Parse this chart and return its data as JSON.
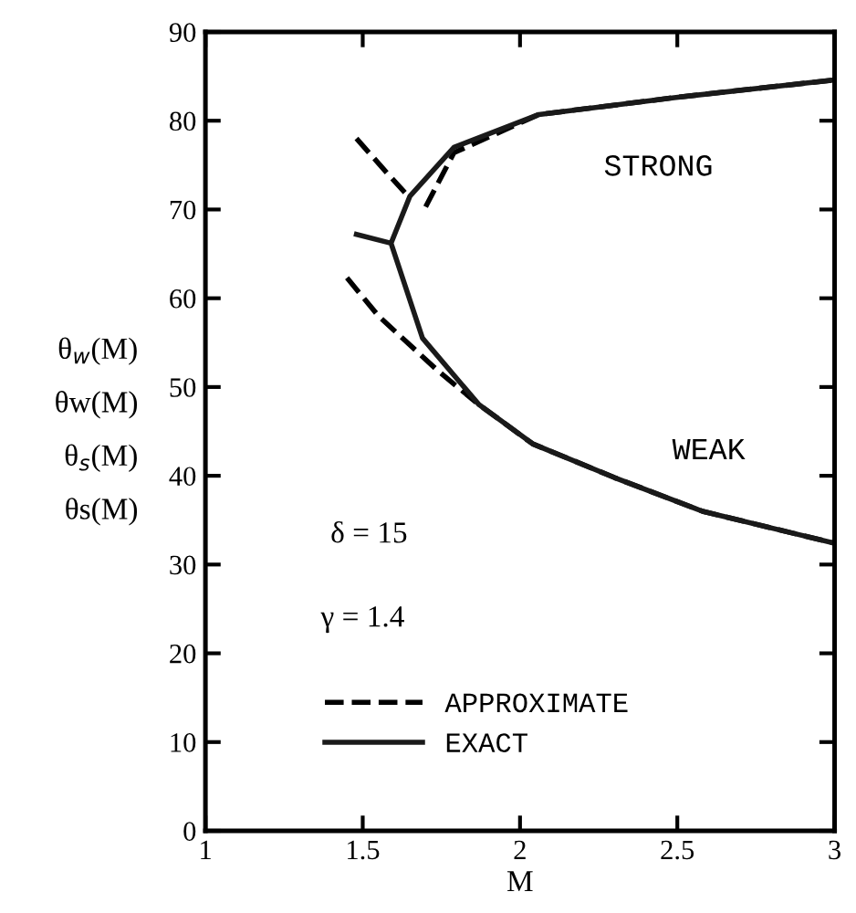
{
  "chart_data": {
    "type": "line",
    "xlabel": "M",
    "ylabel": "θ$_{w}$(M)\nθw(M)\nθ$_{s}$(M)\nθs(M)",
    "xlim": [
      1,
      3
    ],
    "xticks": [
      1,
      1.5,
      2,
      2.5,
      3
    ],
    "ylim": [
      0,
      90
    ],
    "yticks": [
      0,
      10,
      20,
      30,
      40,
      50,
      60,
      70,
      80,
      90
    ],
    "grid": false,
    "legend": "bottom left",
    "marker": "none",
    "annotations": [
      "STRONG",
      "WEAK",
      "δ = 15",
      "γ = 1.4"
    ],
    "series": [
      {
        "name": "APPROXIMATE",
        "color": "#000000",
        "line_style": "dashed",
        "x": [
          1.48,
          1.58,
          1.65,
          null,
          1.7,
          1.79,
          2.06,
          2.49,
          3,
          null,
          1.45,
          1.55,
          1.74,
          1.87,
          2.04,
          2.3,
          2.58,
          2.86,
          3
        ],
        "values": [
          78,
          74,
          71.3,
          null,
          70.3,
          76.4,
          80.7,
          82.6,
          84.6,
          null,
          62.3,
          58,
          51.8,
          48,
          43.6,
          39.8,
          36,
          33.6,
          32.4
        ]
      },
      {
        "name": "EXACT",
        "color": "#1a1a1a",
        "line_style": "solid",
        "x": [
          1.48,
          1.59,
          1.65,
          1.79,
          2.06,
          2.49,
          3,
          null,
          1.59,
          1.69,
          1.87,
          2.04,
          2.3,
          2.58,
          2.86,
          3
        ],
        "values": [
          67.2,
          66.2,
          71.5,
          77,
          80.7,
          82.6,
          84.6,
          null,
          66.2,
          55.5,
          48,
          43.6,
          39.8,
          36,
          33.6,
          32.4
        ]
      }
    ]
  }
}
